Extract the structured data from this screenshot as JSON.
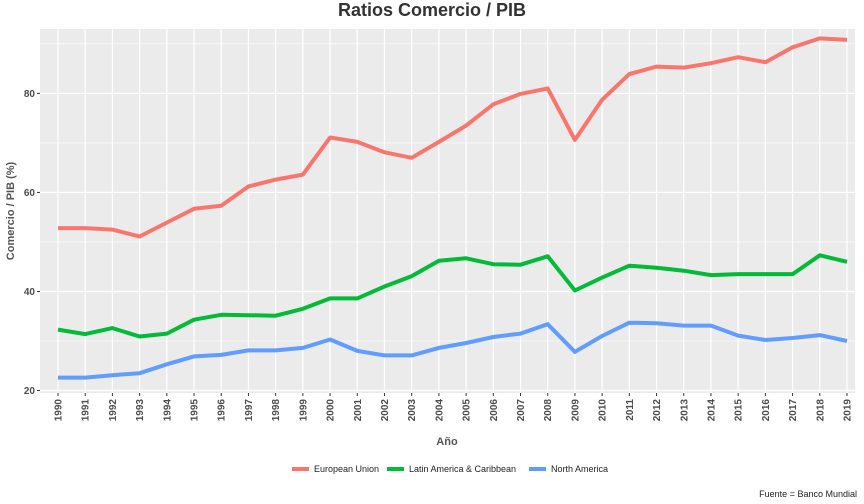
{
  "chart_data": {
    "type": "line",
    "title": "Ratios Comercio / PIB",
    "xlabel": "Año",
    "ylabel": "Comercio / PIB (%)",
    "caption": "Fuente = Banco Mundial",
    "x": [
      "1990",
      "1991",
      "1992",
      "1993",
      "1994",
      "1995",
      "1996",
      "1997",
      "1998",
      "1999",
      "2000",
      "2001",
      "2002",
      "2003",
      "2004",
      "2005",
      "2006",
      "2007",
      "2008",
      "2009",
      "2010",
      "2011",
      "2012",
      "2013",
      "2014",
      "2015",
      "2016",
      "2017",
      "2018",
      "2019"
    ],
    "ylim": [
      19.5,
      93
    ],
    "yticks": [
      20,
      40,
      60,
      80
    ],
    "grid": true,
    "legend_position": "bottom",
    "colors": {
      "panel_background": "#ebebeb",
      "grid": "#ffffff"
    },
    "series": [
      {
        "name": "European Union",
        "color": "#f8766d",
        "values": [
          52.8,
          52.8,
          52.5,
          51.1,
          53.9,
          56.7,
          57.3,
          61.2,
          62.6,
          63.6,
          71.1,
          70.2,
          68.1,
          67.0,
          70.2,
          73.5,
          77.8,
          79.9,
          81.0,
          70.6,
          78.7,
          83.9,
          85.4,
          85.2,
          86.1,
          87.3,
          86.3,
          89.3,
          91.1,
          90.8
        ]
      },
      {
        "name": "Latin America & Caribbean",
        "color": "#00ba38",
        "values": [
          32.3,
          31.4,
          32.6,
          30.9,
          31.5,
          34.3,
          35.3,
          35.2,
          35.1,
          36.5,
          38.6,
          38.6,
          41.0,
          43.1,
          46.2,
          46.7,
          45.5,
          45.4,
          47.1,
          40.2,
          42.8,
          45.2,
          44.8,
          44.2,
          43.3,
          43.5,
          43.5,
          43.5,
          47.3,
          46.0
        ]
      },
      {
        "name": "North America",
        "color": "#619cff",
        "values": [
          22.6,
          22.6,
          23.1,
          23.5,
          25.3,
          26.9,
          27.2,
          28.1,
          28.1,
          28.6,
          30.3,
          28.0,
          27.1,
          27.1,
          28.6,
          29.6,
          30.8,
          31.5,
          33.4,
          27.8,
          31.0,
          33.7,
          33.6,
          33.1,
          33.1,
          31.1,
          30.2,
          30.6,
          31.2,
          30.0
        ]
      }
    ]
  }
}
